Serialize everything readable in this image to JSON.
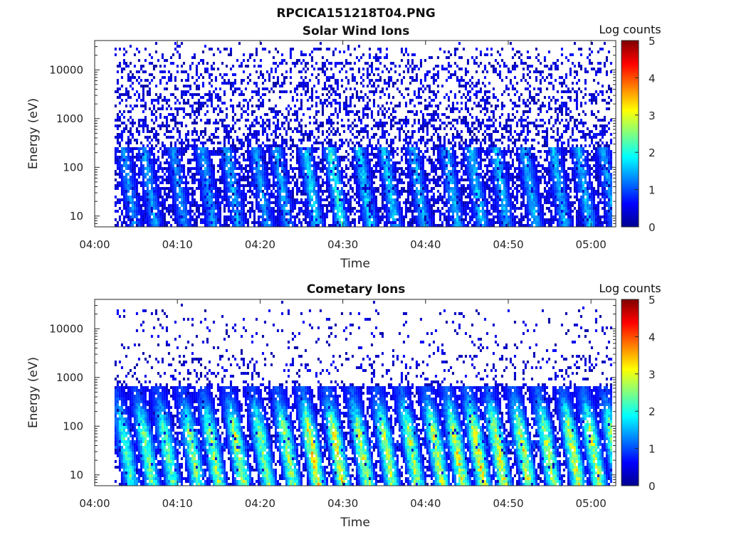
{
  "figure_title": "RPCICA151218T04.PNG",
  "colormap": [
    "#00008f",
    "#0000ff",
    "#0080ff",
    "#00ffff",
    "#80ff80",
    "#ffff00",
    "#ff8000",
    "#ff0000",
    "#800000"
  ],
  "chart_data": [
    {
      "type": "heatmap",
      "title": "Solar Wind Ions",
      "xlabel": "Time",
      "ylabel": "Energy (eV)",
      "x_ticks": [
        "04:00",
        "04:10",
        "04:20",
        "04:30",
        "04:40",
        "04:50",
        "05:00"
      ],
      "x_range_minutes": [
        0,
        63
      ],
      "y_scale": "log",
      "y_ticks": [
        10,
        100,
        1000,
        10000
      ],
      "y_tick_labels": [
        "10",
        "100",
        "1000",
        "10000"
      ],
      "y_range": [
        6,
        40000
      ],
      "data_start_minute": 2.4,
      "colorbar": {
        "label": "Log counts",
        "range": [
          0,
          5
        ],
        "ticks": [
          "0",
          "1",
          "2",
          "3",
          "4",
          "5"
        ]
      },
      "bursts": [
        {
          "t": 3.5,
          "peak": 1.2
        },
        {
          "t": 6.0,
          "peak": 1.3
        },
        {
          "t": 9.5,
          "peak": 1.2
        },
        {
          "t": 13.0,
          "peak": 1.3
        },
        {
          "t": 16.0,
          "peak": 1.4
        },
        {
          "t": 19.5,
          "peak": 1.3
        },
        {
          "t": 22.0,
          "peak": 1.4
        },
        {
          "t": 25.5,
          "peak": 1.8
        },
        {
          "t": 28.5,
          "peak": 2.0
        },
        {
          "t": 32.0,
          "peak": 1.7
        },
        {
          "t": 35.0,
          "peak": 1.6
        },
        {
          "t": 38.5,
          "peak": 1.5
        },
        {
          "t": 42.5,
          "peak": 1.5
        },
        {
          "t": 45.5,
          "peak": 1.6
        },
        {
          "t": 48.5,
          "peak": 1.5
        },
        {
          "t": 52.0,
          "peak": 1.5
        },
        {
          "t": 55.5,
          "peak": 1.5
        },
        {
          "t": 58.5,
          "peak": 1.5
        },
        {
          "t": 61.5,
          "peak": 1.3
        }
      ]
    },
    {
      "type": "heatmap",
      "title": "Cometary Ions",
      "xlabel": "Time",
      "ylabel": "Energy (eV)",
      "x_ticks": [
        "04:00",
        "04:10",
        "04:20",
        "04:30",
        "04:40",
        "04:50",
        "05:00"
      ],
      "x_range_minutes": [
        0,
        63
      ],
      "y_scale": "log",
      "y_ticks": [
        10,
        100,
        1000,
        10000
      ],
      "y_tick_labels": [
        "10",
        "100",
        "1000",
        "10000"
      ],
      "y_range": [
        6,
        40000
      ],
      "data_start_minute": 2.4,
      "colorbar": {
        "label": "Log counts",
        "range": [
          0,
          5
        ],
        "ticks": [
          "0",
          "1",
          "2",
          "3",
          "4",
          "5"
        ]
      },
      "bursts": [
        {
          "t": 3.0,
          "peak": 2.2
        },
        {
          "t": 5.5,
          "peak": 2.5
        },
        {
          "t": 8.0,
          "peak": 2.4
        },
        {
          "t": 11.0,
          "peak": 2.6
        },
        {
          "t": 13.5,
          "peak": 2.8
        },
        {
          "t": 16.5,
          "peak": 2.9
        },
        {
          "t": 19.5,
          "peak": 2.7
        },
        {
          "t": 22.5,
          "peak": 2.9
        },
        {
          "t": 25.5,
          "peak": 3.5
        },
        {
          "t": 28.5,
          "peak": 3.3
        },
        {
          "t": 31.5,
          "peak": 3.0
        },
        {
          "t": 34.5,
          "peak": 2.9
        },
        {
          "t": 37.5,
          "peak": 3.0
        },
        {
          "t": 40.5,
          "peak": 3.1
        },
        {
          "t": 43.0,
          "peak": 3.2
        },
        {
          "t": 45.5,
          "peak": 3.5
        },
        {
          "t": 48.0,
          "peak": 3.3
        },
        {
          "t": 51.0,
          "peak": 3.2
        },
        {
          "t": 54.0,
          "peak": 3.0
        },
        {
          "t": 57.0,
          "peak": 3.2
        },
        {
          "t": 59.5,
          "peak": 3.1
        },
        {
          "t": 62.0,
          "peak": 2.8
        }
      ]
    }
  ]
}
